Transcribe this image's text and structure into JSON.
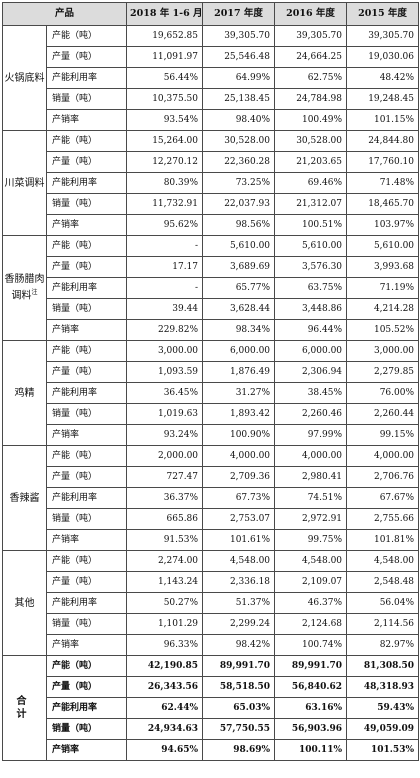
{
  "header": {
    "product": "产品",
    "col1": "2018 年 1-6 月",
    "col2": "2017 年度",
    "col3": "2016 年度",
    "col4": "2015 年度"
  },
  "groups": [
    {
      "name": "火锅底料",
      "rows": [
        {
          "metric": "产能（吨）",
          "v1": "19,652.85",
          "v2": "39,305.70",
          "v3": "39,305.70",
          "v4": "39,305.70"
        },
        {
          "metric": "产量（吨）",
          "v1": "11,091.97",
          "v2": "25,546.48",
          "v3": "24,664.25",
          "v4": "19,030.06"
        },
        {
          "metric": "产能利用率",
          "v1": "56.44%",
          "v2": "64.99%",
          "v3": "62.75%",
          "v4": "48.42%"
        },
        {
          "metric": "销量（吨）",
          "v1": "10,375.50",
          "v2": "25,138.45",
          "v3": "24,784.98",
          "v4": "19,248.45"
        },
        {
          "metric": "产销率",
          "v1": "93.54%",
          "v2": "98.40%",
          "v3": "100.49%",
          "v4": "101.15%"
        }
      ]
    },
    {
      "name": "川菜调料",
      "rows": [
        {
          "metric": "产能（吨）",
          "v1": "15,264.00",
          "v2": "30,528.00",
          "v3": "30,528.00",
          "v4": "24,844.80"
        },
        {
          "metric": "产量（吨）",
          "v1": "12,270.12",
          "v2": "22,360.28",
          "v3": "21,203.65",
          "v4": "17,760.10"
        },
        {
          "metric": "产能利用率",
          "v1": "80.39%",
          "v2": "73.25%",
          "v3": "69.46%",
          "v4": "71.48%"
        },
        {
          "metric": "销量（吨）",
          "v1": "11,732.91",
          "v2": "22,037.93",
          "v3": "21,312.07",
          "v4": "18,465.70"
        },
        {
          "metric": "产销率",
          "v1": "95.62%",
          "v2": "98.56%",
          "v3": "100.51%",
          "v4": "103.97%"
        }
      ]
    },
    {
      "name": "香肠腊肉调料",
      "sup": "注",
      "rows": [
        {
          "metric": "产能（吨）",
          "v1": "-",
          "v2": "5,610.00",
          "v3": "5,610.00",
          "v4": "5,610.00"
        },
        {
          "metric": "产量（吨）",
          "v1": "17.17",
          "v2": "3,689.69",
          "v3": "3,576.30",
          "v4": "3,993.68"
        },
        {
          "metric": "产能利用率",
          "v1": "-",
          "v2": "65.77%",
          "v3": "63.75%",
          "v4": "71.19%"
        },
        {
          "metric": "销量（吨）",
          "v1": "39.44",
          "v2": "3,628.44",
          "v3": "3,448.86",
          "v4": "4,214.28"
        },
        {
          "metric": "产销率",
          "v1": "229.82%",
          "v2": "98.34%",
          "v3": "96.44%",
          "v4": "105.52%"
        }
      ]
    },
    {
      "name": "鸡精",
      "rows": [
        {
          "metric": "产能（吨）",
          "v1": "3,000.00",
          "v2": "6,000.00",
          "v3": "6,000.00",
          "v4": "3,000.00"
        },
        {
          "metric": "产量（吨）",
          "v1": "1,093.59",
          "v2": "1,876.49",
          "v3": "2,306.94",
          "v4": "2,279.85"
        },
        {
          "metric": "产能利用率",
          "v1": "36.45%",
          "v2": "31.27%",
          "v3": "38.45%",
          "v4": "76.00%"
        },
        {
          "metric": "销量（吨）",
          "v1": "1,019.63",
          "v2": "1,893.42",
          "v3": "2,260.46",
          "v4": "2,260.44"
        },
        {
          "metric": "产销率",
          "v1": "93.24%",
          "v2": "100.90%",
          "v3": "97.99%",
          "v4": "99.15%"
        }
      ]
    },
    {
      "name": "香辣酱",
      "rows": [
        {
          "metric": "产能（吨）",
          "v1": "2,000.00",
          "v2": "4,000.00",
          "v3": "4,000.00",
          "v4": "4,000.00"
        },
        {
          "metric": "产量（吨）",
          "v1": "727.47",
          "v2": "2,709.36",
          "v3": "2,980.41",
          "v4": "2,706.76"
        },
        {
          "metric": "产能利用率",
          "v1": "36.37%",
          "v2": "67.73%",
          "v3": "74.51%",
          "v4": "67.67%"
        },
        {
          "metric": "销量（吨）",
          "v1": "665.86",
          "v2": "2,753.07",
          "v3": "2,972.91",
          "v4": "2,755.66"
        },
        {
          "metric": "产销率",
          "v1": "91.53%",
          "v2": "101.61%",
          "v3": "99.75%",
          "v4": "101.81%"
        }
      ]
    },
    {
      "name": "其他",
      "rows": [
        {
          "metric": "产能（吨）",
          "v1": "2,274.00",
          "v2": "4,548.00",
          "v3": "4,548.00",
          "v4": "4,548.00"
        },
        {
          "metric": "产量（吨）",
          "v1": "1,143.24",
          "v2": "2,336.18",
          "v3": "2,109.07",
          "v4": "2,548.48"
        },
        {
          "metric": "产能利用率",
          "v1": "50.27%",
          "v2": "51.37%",
          "v3": "46.37%",
          "v4": "56.04%"
        },
        {
          "metric": "销量（吨）",
          "v1": "1,101.29",
          "v2": "2,299.24",
          "v3": "2,124.68",
          "v4": "2,114.56"
        },
        {
          "metric": "产销率",
          "v1": "96.33%",
          "v2": "98.42%",
          "v3": "100.74%",
          "v4": "82.97%"
        }
      ]
    },
    {
      "name": "合 计",
      "rows": [
        {
          "metric": "产能（吨）",
          "v1": "42,190.85",
          "v2": "89,991.70",
          "v3": "89,991.70",
          "v4": "81,308.50"
        },
        {
          "metric": "产量（吨）",
          "v1": "26,343.56",
          "v2": "58,518.50",
          "v3": "56,840.62",
          "v4": "48,318.93"
        },
        {
          "metric": "产能利用率",
          "v1": "62.44%",
          "v2": "65.03%",
          "v3": "63.16%",
          "v4": "59.43%"
        },
        {
          "metric": "销量（吨）",
          "v1": "24,934.63",
          "v2": "57,750.55",
          "v3": "56,903.96",
          "v4": "49,059.09"
        },
        {
          "metric": "产销率",
          "v1": "94.65%",
          "v2": "98.69%",
          "v3": "100.11%",
          "v4": "101.53%"
        }
      ]
    }
  ]
}
